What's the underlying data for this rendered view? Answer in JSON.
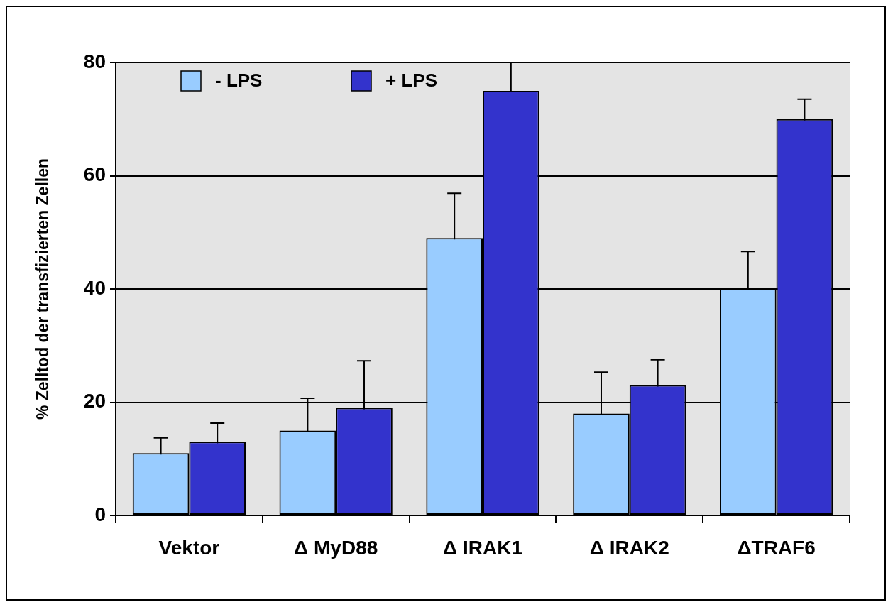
{
  "chart_data": {
    "type": "bar",
    "ylabel": "% Zelltod der transfizierten Zellen",
    "categories": [
      "Vektor",
      "Δ MyD88",
      "Δ IRAK1",
      "Δ IRAK2",
      "ΔTRAF6"
    ],
    "series": [
      {
        "name": "- LPS",
        "color": "#99ccff",
        "values": [
          11,
          15,
          49,
          18,
          40
        ],
        "errors": [
          2.7,
          5.7,
          7.9,
          7.3,
          6.6
        ]
      },
      {
        "name": "+ LPS",
        "color": "#3333cc",
        "values": [
          13,
          19,
          75,
          23,
          70
        ],
        "errors": [
          3.3,
          8.3,
          5,
          4.5,
          3.5
        ]
      }
    ],
    "ylim": [
      0,
      80
    ],
    "yticks": [
      0,
      20,
      40,
      60,
      80
    ],
    "grid": "y",
    "legend": "top left"
  }
}
